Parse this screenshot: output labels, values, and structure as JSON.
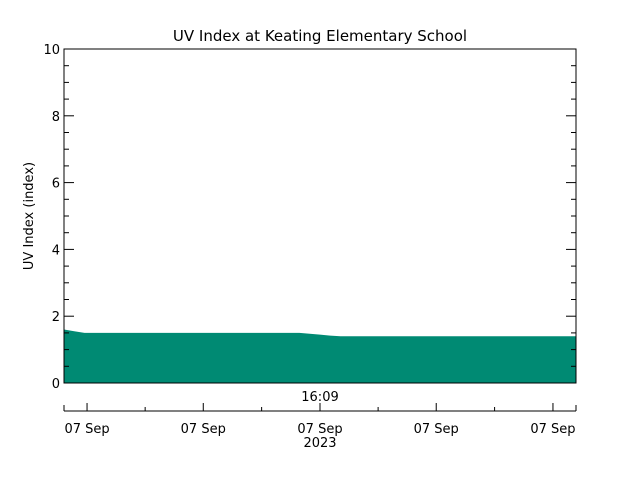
{
  "chart_data": {
    "type": "area",
    "title": "UV Index at Keating Elementary School",
    "ylabel": "UV Index (index)",
    "xlabel": "",
    "ylim": [
      0,
      10
    ],
    "y_ticks": [
      "0",
      "2",
      "4",
      "6",
      "8",
      "10"
    ],
    "x_tick_labels": [
      "07 Sep",
      "07 Sep",
      "07 Sep",
      "07 Sep",
      "07 Sep"
    ],
    "current_time_label": "16:09",
    "year_label": "2023",
    "fill_color": "#008a73",
    "grid": false,
    "series": [
      {
        "x": [
          0.0,
          0.02,
          0.04,
          0.1,
          0.2,
          0.3,
          0.4,
          0.46,
          0.5,
          0.52,
          0.54,
          0.6,
          0.7,
          0.8,
          0.9,
          1.0
        ],
        "values": [
          1.6,
          1.55,
          1.5,
          1.5,
          1.5,
          1.5,
          1.5,
          1.5,
          1.45,
          1.42,
          1.4,
          1.4,
          1.4,
          1.4,
          1.4,
          1.4
        ]
      }
    ]
  }
}
